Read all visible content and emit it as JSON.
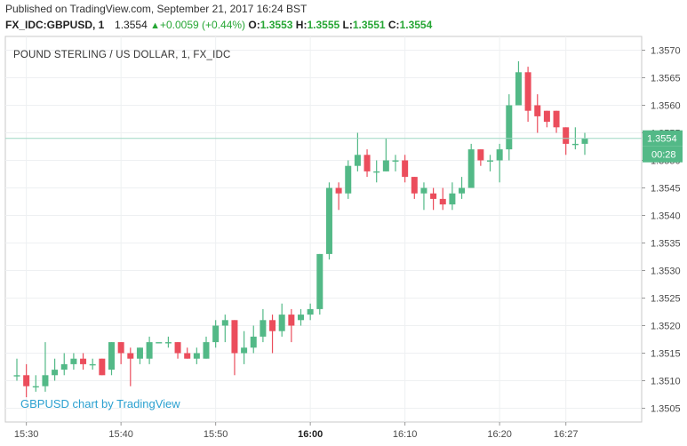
{
  "header": {
    "published": "Published on TradingView.com, September 21, 2017 16:24 BST",
    "symbol": "FX_IDC:GBPUSD, 1",
    "last": "1.3554",
    "change": "+0.0059 (+0.44%)",
    "o_label": "O:",
    "o_value": "1.3553",
    "h_label": "H:",
    "h_value": "1.3555",
    "l_label": "L:",
    "l_value": "1.3551",
    "c_label": "C:",
    "c_value": "1.3554"
  },
  "chart_title": "POUND STERLING / US DOLLAR, 1, FX_IDC",
  "watermark": "GBPUSD chart by TradingView",
  "price_tag": "1.3554",
  "countdown_tag": "00:28",
  "colors": {
    "up": "#53b987",
    "down": "#eb4d5c",
    "last_line": "#9ed8c4",
    "tag": "#53b987"
  },
  "chart_data": {
    "type": "candlestick",
    "title": "POUND STERLING / US DOLLAR, 1, FX_IDC",
    "interval_minutes": 1,
    "x_ticks": [
      "15:30",
      "15:40",
      "15:50",
      "16:00",
      "16:10",
      "16:20",
      "16:27"
    ],
    "x_tick_minutes": [
      930,
      940,
      950,
      960,
      970,
      980,
      987
    ],
    "y_ticks": [
      "1.3505",
      "1.3510",
      "1.3515",
      "1.3520",
      "1.3525",
      "1.3530",
      "1.3535",
      "1.3540",
      "1.3545",
      "1.3550",
      "1.3555",
      "1.3560",
      "1.3565",
      "1.3570"
    ],
    "ylim": [
      1.35025,
      1.35725
    ],
    "grid": true,
    "last_price": 1.3554,
    "candles": [
      {
        "t": "15:29",
        "o": 1.3511,
        "h": 1.3514,
        "l": 1.351,
        "c": 1.3511
      },
      {
        "t": "15:30",
        "o": 1.3511,
        "h": 1.3513,
        "l": 1.3507,
        "c": 1.3509
      },
      {
        "t": "15:31",
        "o": 1.3509,
        "h": 1.3511,
        "l": 1.3508,
        "c": 1.3509
      },
      {
        "t": "15:32",
        "o": 1.3509,
        "h": 1.3517,
        "l": 1.3508,
        "c": 1.3511
      },
      {
        "t": "15:33",
        "o": 1.3511,
        "h": 1.3514,
        "l": 1.351,
        "c": 1.3512
      },
      {
        "t": "15:34",
        "o": 1.3512,
        "h": 1.3515,
        "l": 1.3511,
        "c": 1.3513
      },
      {
        "t": "15:35",
        "o": 1.3513,
        "h": 1.3515,
        "l": 1.3512,
        "c": 1.3514
      },
      {
        "t": "15:36",
        "o": 1.3514,
        "h": 1.3515,
        "l": 1.3512,
        "c": 1.3513
      },
      {
        "t": "15:37",
        "o": 1.3513,
        "h": 1.3514,
        "l": 1.3512,
        "c": 1.3513
      },
      {
        "t": "15:38",
        "o": 1.3514,
        "h": 1.3514,
        "l": 1.3511,
        "c": 1.3511
      },
      {
        "t": "15:39",
        "o": 1.3512,
        "h": 1.3517,
        "l": 1.3511,
        "c": 1.3517
      },
      {
        "t": "15:40",
        "o": 1.3517,
        "h": 1.3517,
        "l": 1.3513,
        "c": 1.3515
      },
      {
        "t": "15:41",
        "o": 1.3515,
        "h": 1.3516,
        "l": 1.3509,
        "c": 1.3514
      },
      {
        "t": "15:42",
        "o": 1.3514,
        "h": 1.3516,
        "l": 1.3513,
        "c": 1.3516
      },
      {
        "t": "15:43",
        "o": 1.3514,
        "h": 1.3518,
        "l": 1.3513,
        "c": 1.3517
      },
      {
        "t": "15:44",
        "o": 1.3517,
        "h": 1.3517,
        "l": 1.3517,
        "c": 1.3517
      },
      {
        "t": "15:45",
        "o": 1.3517,
        "h": 1.3518,
        "l": 1.3516,
        "c": 1.3517
      },
      {
        "t": "15:46",
        "o": 1.3517,
        "h": 1.3517,
        "l": 1.3514,
        "c": 1.3515
      },
      {
        "t": "15:47",
        "o": 1.3515,
        "h": 1.3516,
        "l": 1.3514,
        "c": 1.3514
      },
      {
        "t": "15:48",
        "o": 1.3514,
        "h": 1.3516,
        "l": 1.3513,
        "c": 1.3515
      },
      {
        "t": "15:49",
        "o": 1.3514,
        "h": 1.3518,
        "l": 1.3514,
        "c": 1.3517
      },
      {
        "t": "15:50",
        "o": 1.3517,
        "h": 1.3521,
        "l": 1.3516,
        "c": 1.352
      },
      {
        "t": "15:51",
        "o": 1.352,
        "h": 1.3522,
        "l": 1.3517,
        "c": 1.3521
      },
      {
        "t": "15:52",
        "o": 1.3521,
        "h": 1.3521,
        "l": 1.3511,
        "c": 1.3515
      },
      {
        "t": "15:53",
        "o": 1.3515,
        "h": 1.3519,
        "l": 1.3513,
        "c": 1.3516
      },
      {
        "t": "15:54",
        "o": 1.3516,
        "h": 1.352,
        "l": 1.3515,
        "c": 1.3518
      },
      {
        "t": "15:55",
        "o": 1.3518,
        "h": 1.3523,
        "l": 1.3517,
        "c": 1.3521
      },
      {
        "t": "15:56",
        "o": 1.3521,
        "h": 1.3522,
        "l": 1.3515,
        "c": 1.3519
      },
      {
        "t": "15:57",
        "o": 1.3519,
        "h": 1.3524,
        "l": 1.3518,
        "c": 1.3522
      },
      {
        "t": "15:58",
        "o": 1.3522,
        "h": 1.3523,
        "l": 1.3517,
        "c": 1.352
      },
      {
        "t": "15:59",
        "o": 1.3521,
        "h": 1.3523,
        "l": 1.352,
        "c": 1.3522
      },
      {
        "t": "16:00",
        "o": 1.3522,
        "h": 1.3524,
        "l": 1.3521,
        "c": 1.3523
      },
      {
        "t": "16:01",
        "o": 1.3523,
        "h": 1.3533,
        "l": 1.3522,
        "c": 1.3533
      },
      {
        "t": "16:02",
        "o": 1.3533,
        "h": 1.3546,
        "l": 1.3532,
        "c": 1.3545
      },
      {
        "t": "16:03",
        "o": 1.3545,
        "h": 1.3546,
        "l": 1.3541,
        "c": 1.3544
      },
      {
        "t": "16:04",
        "o": 1.3544,
        "h": 1.355,
        "l": 1.3543,
        "c": 1.3549
      },
      {
        "t": "16:05",
        "o": 1.3549,
        "h": 1.3555,
        "l": 1.3548,
        "c": 1.3551
      },
      {
        "t": "16:06",
        "o": 1.3551,
        "h": 1.3552,
        "l": 1.3547,
        "c": 1.3548
      },
      {
        "t": "16:07",
        "o": 1.3548,
        "h": 1.355,
        "l": 1.3546,
        "c": 1.3548
      },
      {
        "t": "16:08",
        "o": 1.3548,
        "h": 1.3554,
        "l": 1.3548,
        "c": 1.355
      },
      {
        "t": "16:09",
        "o": 1.355,
        "h": 1.3551,
        "l": 1.3548,
        "c": 1.355
      },
      {
        "t": "16:10",
        "o": 1.355,
        "h": 1.3551,
        "l": 1.3546,
        "c": 1.3547
      },
      {
        "t": "16:11",
        "o": 1.3547,
        "h": 1.3547,
        "l": 1.3543,
        "c": 1.3544
      },
      {
        "t": "16:12",
        "o": 1.3544,
        "h": 1.3546,
        "l": 1.3541,
        "c": 1.3545
      },
      {
        "t": "16:13",
        "o": 1.3544,
        "h": 1.3545,
        "l": 1.3541,
        "c": 1.3543
      },
      {
        "t": "16:14",
        "o": 1.3543,
        "h": 1.3545,
        "l": 1.3541,
        "c": 1.3542
      },
      {
        "t": "16:15",
        "o": 1.3542,
        "h": 1.3546,
        "l": 1.3541,
        "c": 1.3544
      },
      {
        "t": "16:16",
        "o": 1.3544,
        "h": 1.3547,
        "l": 1.3543,
        "c": 1.3545
      },
      {
        "t": "16:17",
        "o": 1.3545,
        "h": 1.3553,
        "l": 1.3545,
        "c": 1.3552
      },
      {
        "t": "16:18",
        "o": 1.3552,
        "h": 1.3552,
        "l": 1.3549,
        "c": 1.355
      },
      {
        "t": "16:19",
        "o": 1.355,
        "h": 1.3551,
        "l": 1.3548,
        "c": 1.355
      },
      {
        "t": "16:20",
        "o": 1.355,
        "h": 1.3553,
        "l": 1.3546,
        "c": 1.3552
      },
      {
        "t": "16:21",
        "o": 1.3552,
        "h": 1.3562,
        "l": 1.355,
        "c": 1.356
      },
      {
        "t": "16:22",
        "o": 1.356,
        "h": 1.3568,
        "l": 1.356,
        "c": 1.3566
      },
      {
        "t": "16:23",
        "o": 1.3566,
        "h": 1.3567,
        "l": 1.3557,
        "c": 1.3559
      },
      {
        "t": "16:24",
        "o": 1.356,
        "h": 1.3562,
        "l": 1.3555,
        "c": 1.3558
      },
      {
        "t": "16:25",
        "o": 1.3559,
        "h": 1.3559,
        "l": 1.3556,
        "c": 1.3557
      },
      {
        "t": "16:26",
        "o": 1.3559,
        "h": 1.3559,
        "l": 1.3555,
        "c": 1.3556
      },
      {
        "t": "16:27",
        "o": 1.3556,
        "h": 1.3556,
        "l": 1.3551,
        "c": 1.3553
      },
      {
        "t": "16:28",
        "o": 1.3553,
        "h": 1.3556,
        "l": 1.3552,
        "c": 1.3553
      },
      {
        "t": "16:29",
        "o": 1.3553,
        "h": 1.3555,
        "l": 1.3551,
        "c": 1.3554
      }
    ]
  }
}
